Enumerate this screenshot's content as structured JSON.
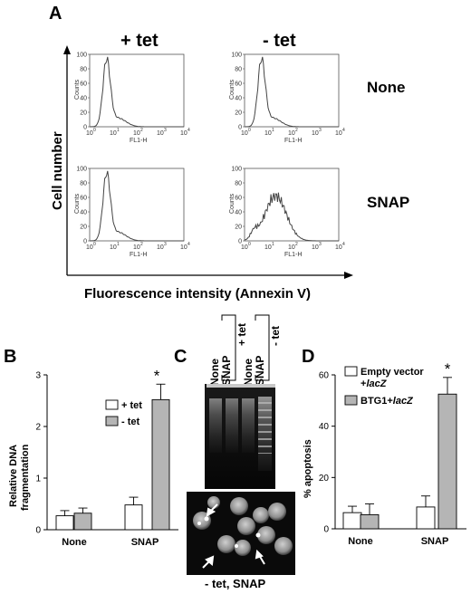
{
  "panel_a": {
    "letter": "A",
    "col_headers": [
      "+ tet",
      "- tet"
    ],
    "row_headers": [
      "None",
      "SNAP"
    ],
    "y_axis_label": "Cell number",
    "x_axis_label": "Fluorescence intensity (Annexin V)",
    "hist_ylabel": "Counts",
    "hist_xlabel": "FL1-H",
    "hist_yticks": [
      "0",
      "20",
      "40",
      "60",
      "80",
      "100"
    ],
    "hist_xticks": [
      "10",
      "10",
      "10",
      "10",
      "10"
    ],
    "hist_xtick_exp": [
      "0",
      "1",
      "2",
      "3",
      "4"
    ]
  },
  "chart_data": [
    {
      "type": "bar",
      "panel": "B",
      "categories": [
        "None",
        "SNAP"
      ],
      "ylabel": "Relative DNA fragmentation",
      "ylim": [
        0,
        3
      ],
      "yticks": [
        "0",
        "1",
        "2",
        "3"
      ],
      "series": [
        {
          "name": "+ tet",
          "values": [
            0.27,
            0.48
          ],
          "errors": [
            0.1,
            0.15
          ],
          "color": "#ffffff"
        },
        {
          "name": "- tet",
          "values": [
            0.32,
            2.52
          ],
          "errors": [
            0.1,
            0.3
          ],
          "color": "#b5b5b5"
        }
      ],
      "annotations": [
        "*"
      ]
    },
    {
      "type": "bar",
      "panel": "D",
      "categories": [
        "None",
        "SNAP"
      ],
      "ylabel": "% apoptosis",
      "ylim": [
        0,
        60
      ],
      "yticks": [
        "0",
        "20",
        "40",
        "60"
      ],
      "series": [
        {
          "name": "Empty vector +lacZ",
          "values": [
            6.3,
            8.5
          ],
          "errors": [
            2.5,
            4.3
          ],
          "color": "#ffffff"
        },
        {
          "name": "BTG1+lacZ",
          "values": [
            5.5,
            52.5
          ],
          "errors": [
            4.2,
            6.5
          ],
          "color": "#b5b5b5"
        }
      ],
      "annotations": [
        "*"
      ]
    }
  ],
  "panel_b": {
    "letter": "B",
    "star": "*"
  },
  "panel_d": {
    "letter": "D",
    "star": "*",
    "legend_1_line1": "Empty vector",
    "legend_1_line2a": "+",
    "legend_1_line2b": "lacZ",
    "legend_2a": "BTG1+",
    "legend_2b": "lacZ"
  },
  "panel_c": {
    "letter": "C",
    "lane_labels": [
      "None",
      "SNAP",
      "None",
      "SNAP"
    ],
    "group_labels": [
      "+ tet",
      "- tet"
    ],
    "caption": "- tet, SNAP"
  }
}
